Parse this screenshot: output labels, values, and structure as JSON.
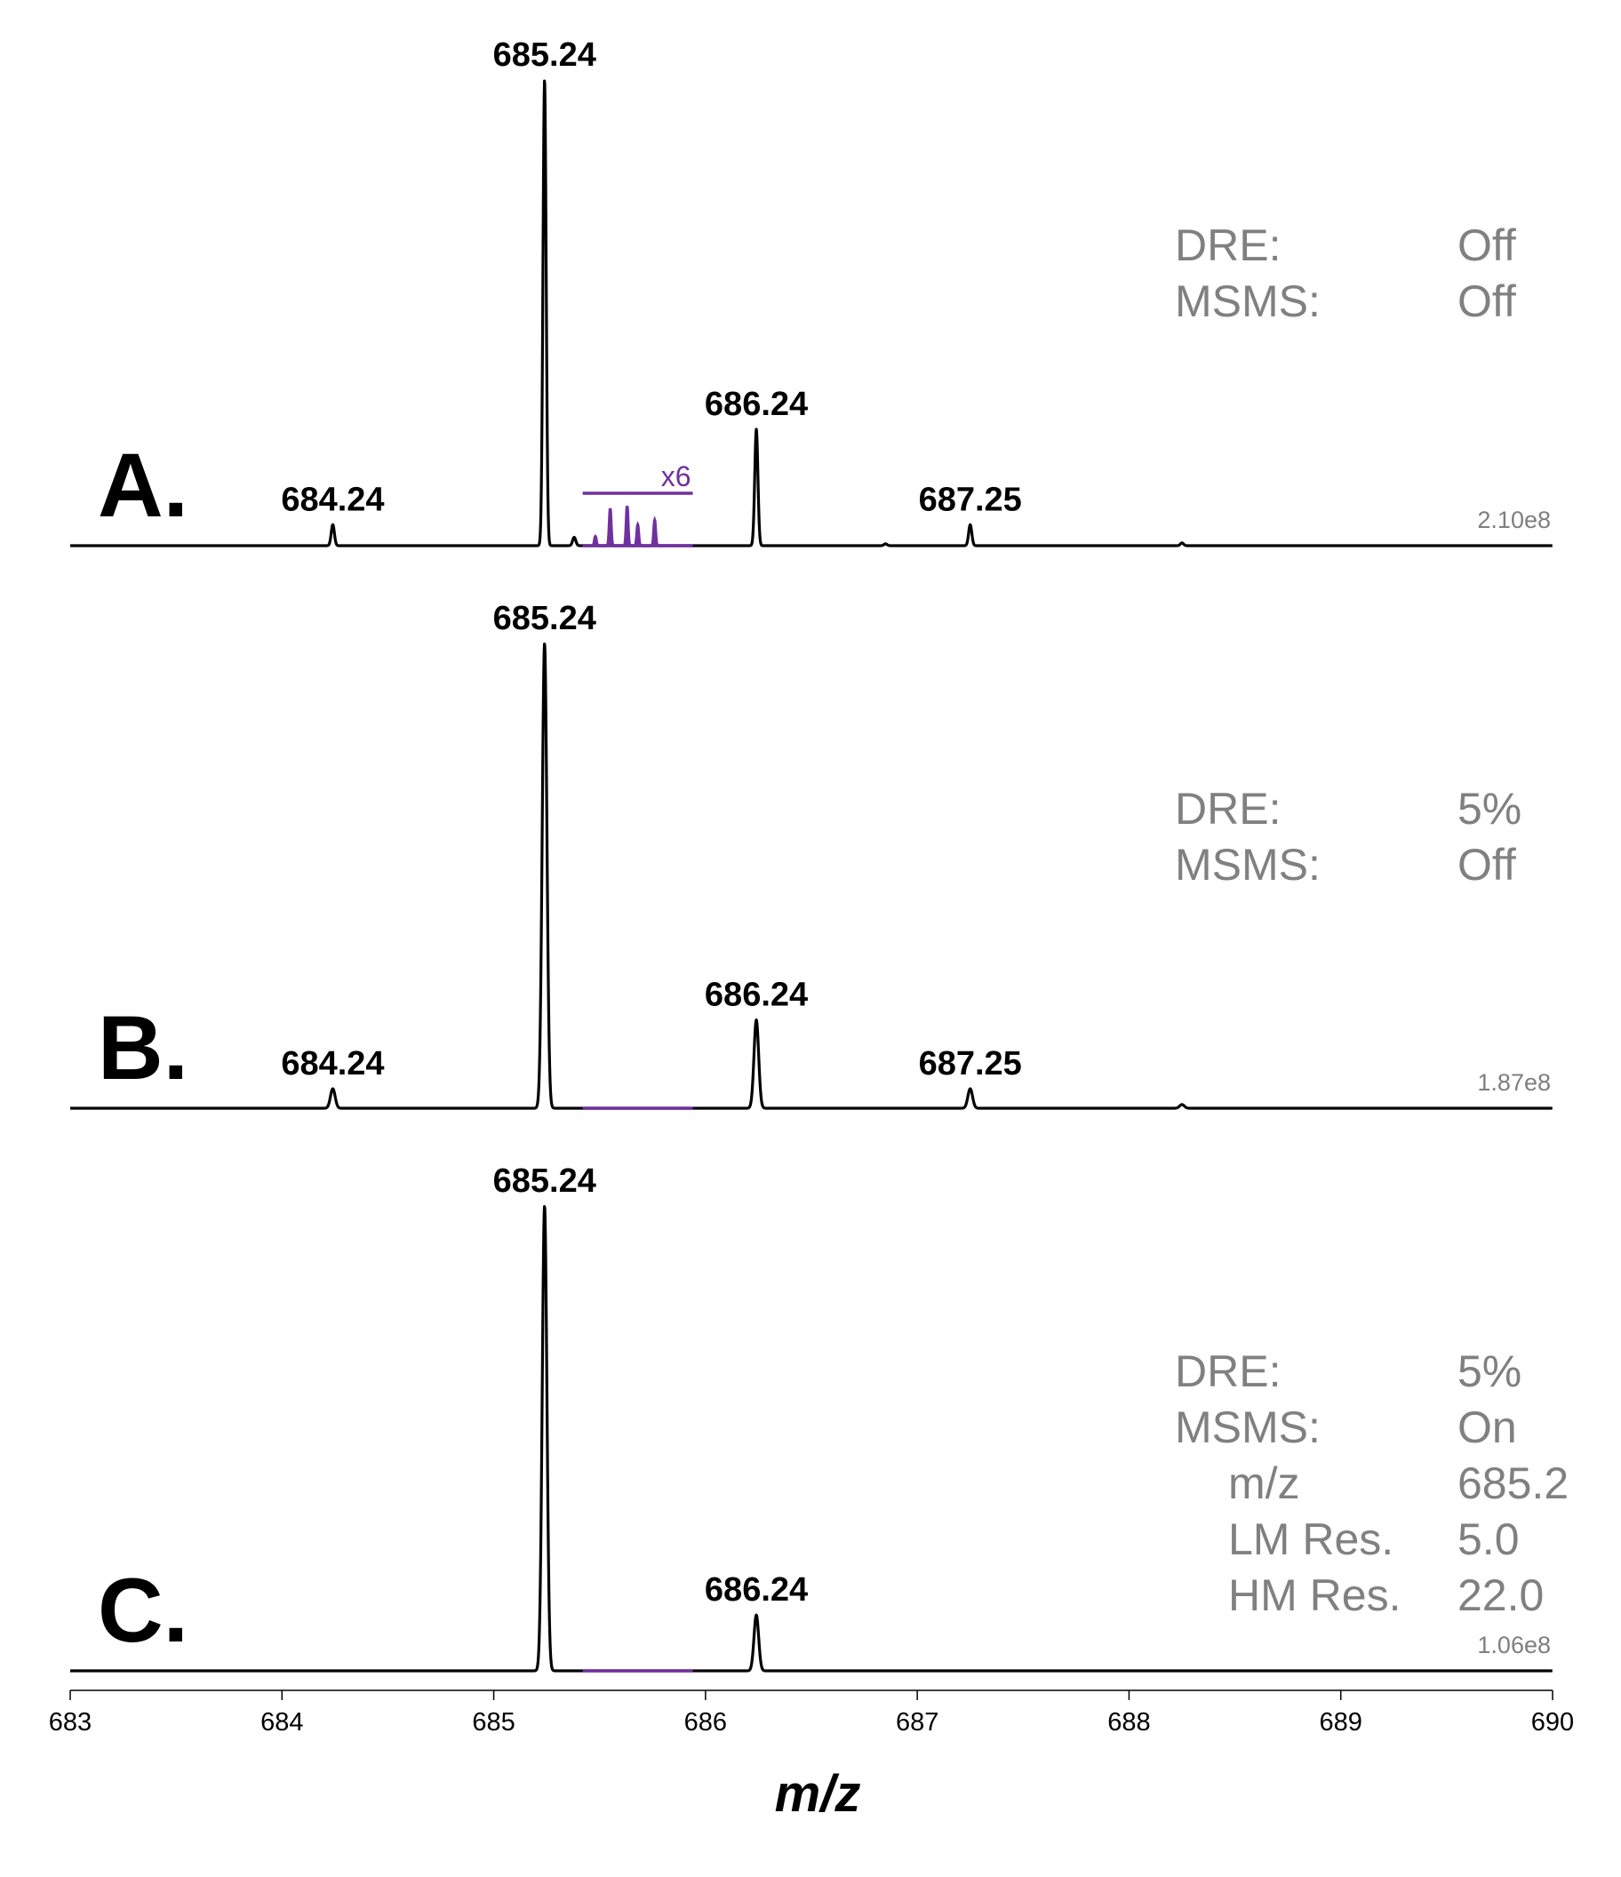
{
  "chart_data": {
    "type": "line",
    "xlabel": "m/z",
    "xlim": [
      683,
      690
    ],
    "x_ticks": [
      "683",
      "684",
      "685",
      "686",
      "687",
      "688",
      "689",
      "690"
    ],
    "colors": {
      "trace": "#000000",
      "zoom": "#7030a0",
      "info": "#808080"
    },
    "panels": [
      {
        "id": "A",
        "letter": "A.",
        "scale_label": "2.10e8",
        "max_intensity": 210000000.0,
        "info": [
          {
            "label": "DRE:",
            "value": "Off",
            "indent": false
          },
          {
            "label": "MSMS:",
            "value": "Off",
            "indent": false
          }
        ],
        "peaks": [
          {
            "mz": 684.24,
            "rel": 4.5,
            "label": "684.24"
          },
          {
            "mz": 685.24,
            "rel": 100,
            "label": "685.24"
          },
          {
            "mz": 686.24,
            "rel": 25,
            "label": "686.24"
          },
          {
            "mz": 687.25,
            "rel": 4.5,
            "label": "687.25"
          },
          {
            "mz": 685.38,
            "rel": 1.8,
            "label": ""
          },
          {
            "mz": 688.25,
            "rel": 0.6,
            "label": ""
          },
          {
            "mz": 686.85,
            "rel": 0.4,
            "label": ""
          }
        ],
        "zoom": {
          "label": "x6",
          "mz_range": [
            685.42,
            685.94
          ],
          "peaks": [
            {
              "mz": 685.48,
              "rel": 2
            },
            {
              "mz": 685.55,
              "rel": 8
            },
            {
              "mz": 685.63,
              "rel": 8.5
            },
            {
              "mz": 685.68,
              "rel": 4.5
            },
            {
              "mz": 685.76,
              "rel": 5.5
            }
          ]
        }
      },
      {
        "id": "B",
        "letter": "B.",
        "scale_label": "1.87e8",
        "max_intensity": 187000000.0,
        "info": [
          {
            "label": "DRE:",
            "value": "5%",
            "indent": false
          },
          {
            "label": "MSMS:",
            "value": "Off",
            "indent": false
          }
        ],
        "peaks": [
          {
            "mz": 684.24,
            "rel": 4.2,
            "label": "684.24"
          },
          {
            "mz": 685.24,
            "rel": 100,
            "label": "685.24"
          },
          {
            "mz": 686.24,
            "rel": 19,
            "label": "686.24"
          },
          {
            "mz": 687.25,
            "rel": 4.2,
            "label": "687.25"
          },
          {
            "mz": 688.25,
            "rel": 0.8,
            "label": ""
          }
        ],
        "zoom": {
          "label": "",
          "mz_range": [
            685.42,
            685.94
          ],
          "peaks": []
        }
      },
      {
        "id": "C",
        "letter": "C.",
        "scale_label": "1.06e8",
        "max_intensity": 106000000.0,
        "info": [
          {
            "label": "DRE:",
            "value": "5%",
            "indent": false
          },
          {
            "label": "MSMS:",
            "value": "On",
            "indent": false
          },
          {
            "label": "m/z",
            "value": "685.2",
            "indent": true
          },
          {
            "label": "LM Res.",
            "value": "5.0",
            "indent": true
          },
          {
            "label": "HM Res.",
            "value": "22.0",
            "indent": true
          }
        ],
        "peaks": [
          {
            "mz": 685.24,
            "rel": 100,
            "label": "685.24"
          },
          {
            "mz": 686.24,
            "rel": 12,
            "label": "686.24"
          }
        ],
        "zoom": {
          "label": "",
          "mz_range": [
            685.42,
            685.94
          ],
          "peaks": []
        }
      }
    ]
  }
}
